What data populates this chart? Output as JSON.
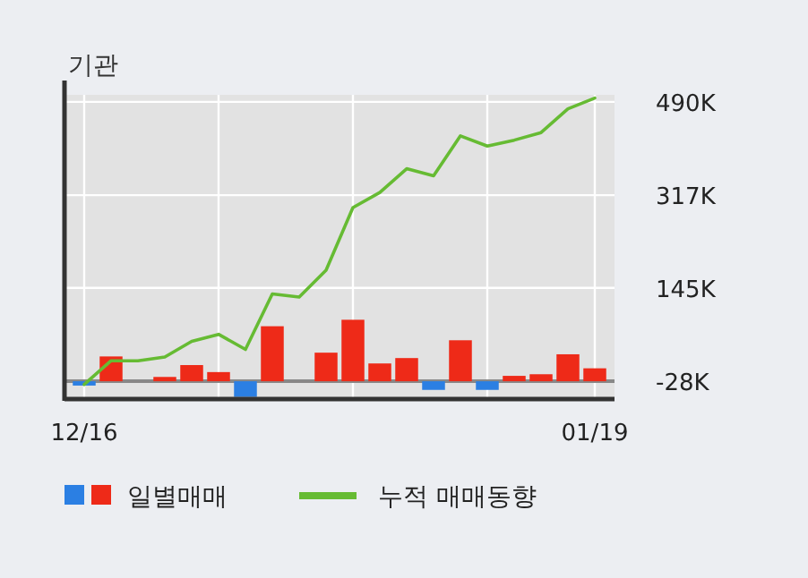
{
  "chart_data": {
    "type": "bar",
    "title": "기관",
    "categories": [
      "12/16",
      null,
      null,
      null,
      null,
      null,
      null,
      null,
      null,
      null,
      null,
      null,
      null,
      null,
      null,
      null,
      null,
      null,
      null,
      "01/19"
    ],
    "ylim": [
      -61,
      503
    ],
    "yticks": [
      {
        "value": -28,
        "label": "-28K"
      },
      {
        "value": 145,
        "label": "145K"
      },
      {
        "value": 317,
        "label": "317K"
      },
      {
        "value": 490,
        "label": "490K"
      }
    ],
    "grid": true,
    "legend": "bottom",
    "ref_lines": [
      {
        "axis": "y",
        "value": -28,
        "color": "#888888"
      }
    ],
    "series": [
      {
        "name": "일별매매",
        "base": [
          -28,
          -28,
          -28,
          -28,
          -28,
          -28,
          -28,
          -28,
          -28,
          -28,
          -28,
          -28,
          -28,
          -28,
          -28,
          -28,
          -28,
          -28,
          -28,
          -28
        ],
        "values": [
          -8,
          46,
          0,
          8,
          30,
          17,
          -29,
          102,
          0,
          53,
          114,
          33,
          43,
          -16,
          76,
          -16,
          10,
          13,
          50,
          24
        ],
        "colors": [
          "#2b7fe3",
          "#ee2a18",
          "#ee2a18",
          "#ee2a18",
          "#ee2a18",
          "#ee2a18",
          "#2b7fe3",
          "#ee2a18",
          "#ee2a18",
          "#ee2a18",
          "#ee2a18",
          "#ee2a18",
          "#ee2a18",
          "#2b7fe3",
          "#ee2a18",
          "#2b7fe3",
          "#ee2a18",
          "#ee2a18",
          "#ee2a18",
          "#ee2a18"
        ]
      },
      {
        "name": "누적 매매동향",
        "type": "line",
        "color": "#66bb33",
        "values": [
          -34,
          10,
          10,
          17,
          46,
          59,
          31,
          134,
          128,
          178,
          294,
          322,
          366,
          353,
          427,
          408,
          419,
          433,
          477,
          497
        ]
      }
    ]
  }
}
